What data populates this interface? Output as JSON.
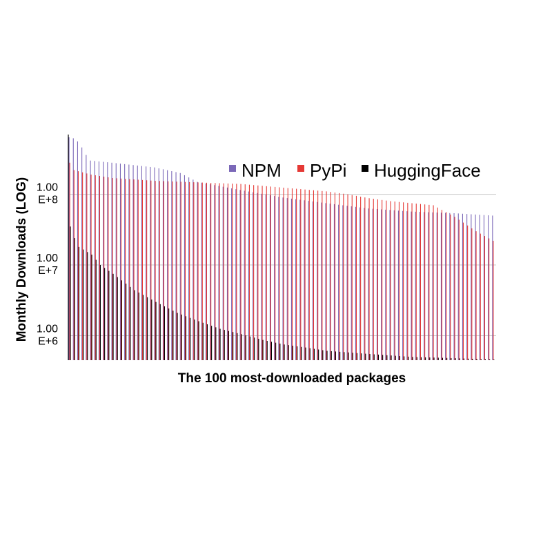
{
  "chart_data": {
    "type": "bar",
    "xlabel": "The 100 most-downloaded packages",
    "ylabel": "Monthly Downloads (LOG)",
    "y_scale": "log",
    "ylim": [
      450000,
      700000000
    ],
    "yticks": [
      {
        "value": 1000000,
        "line1": "1.00",
        "line2": "E+6"
      },
      {
        "value": 10000000,
        "line1": "1.00",
        "line2": "E+7"
      },
      {
        "value": 100000000,
        "line1": "1.00",
        "line2": "E+8"
      }
    ],
    "grid": true,
    "legend_position": "top-right",
    "x_count": 100,
    "series": [
      {
        "name": "NPM",
        "color": "#7b68b8",
        "anchors": [
          [
            0,
            640000000
          ],
          [
            1,
            620000000
          ],
          [
            2,
            560000000
          ],
          [
            3,
            460000000
          ],
          [
            4,
            360000000
          ],
          [
            5,
            300000000
          ],
          [
            10,
            280000000
          ],
          [
            20,
            240000000
          ],
          [
            26,
            200000000
          ],
          [
            30,
            150000000
          ],
          [
            40,
            115000000
          ],
          [
            50,
            90000000
          ],
          [
            60,
            75000000
          ],
          [
            70,
            63000000
          ],
          [
            80,
            57000000
          ],
          [
            90,
            54000000
          ],
          [
            99,
            50000000
          ]
        ]
      },
      {
        "name": "PyPi",
        "color": "#e53935",
        "anchors": [
          [
            0,
            280000000
          ],
          [
            1,
            220000000
          ],
          [
            5,
            190000000
          ],
          [
            10,
            170000000
          ],
          [
            20,
            155000000
          ],
          [
            40,
            140000000
          ],
          [
            60,
            110000000
          ],
          [
            65,
            100000000
          ],
          [
            70,
            88000000
          ],
          [
            75,
            80000000
          ],
          [
            85,
            70000000
          ],
          [
            90,
            48000000
          ],
          [
            95,
            30000000
          ],
          [
            99,
            22000000
          ]
        ]
      },
      {
        "name": "HuggingFace",
        "color": "#000000",
        "anchors": [
          [
            0,
            35000000
          ],
          [
            1,
            24000000
          ],
          [
            2,
            18000000
          ],
          [
            5,
            14000000
          ],
          [
            7,
            10000000
          ],
          [
            10,
            7500000
          ],
          [
            15,
            4400000
          ],
          [
            20,
            3000000
          ],
          [
            25,
            2100000
          ],
          [
            30,
            1600000
          ],
          [
            35,
            1250000
          ],
          [
            40,
            1050000
          ],
          [
            45,
            870000
          ],
          [
            50,
            750000
          ],
          [
            55,
            680000
          ],
          [
            60,
            610000
          ],
          [
            70,
            550000
          ],
          [
            80,
            500000
          ],
          [
            90,
            480000
          ],
          [
            99,
            460000
          ]
        ]
      }
    ]
  }
}
